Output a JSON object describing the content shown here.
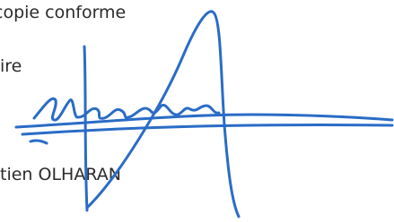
{
  "document": {
    "lines": [
      "copie conforme",
      "ire",
      "tien OLHARAN"
    ]
  }
}
